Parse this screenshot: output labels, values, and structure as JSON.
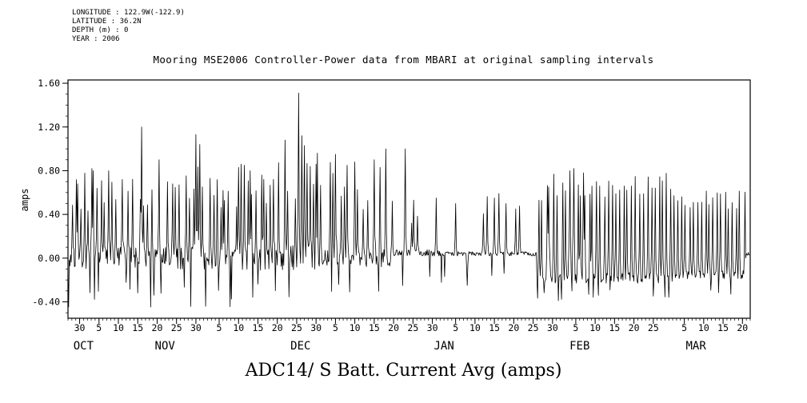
{
  "meta_block": {
    "lines": [
      "LONGITUDE : 122.9W(-122.9)",
      "LATITUDE : 36.2N",
      "DEPTH (m) : 0",
      "YEAR : 2006"
    ]
  },
  "titles": {
    "top": "Mooring MSE2006 Controller-Power data from MBARI at original sampling intervals",
    "bottom": "ADC14/ S Batt. Current Avg (amps)"
  },
  "chart_data": {
    "type": "line",
    "title": "Mooring MSE2006 Controller-Power data from MBARI at original sampling intervals",
    "subtitle": "ADC14/ S Batt. Current Avg (amps)",
    "ylabel": "amps",
    "xlabel": "",
    "line_color": "#000000",
    "background": "#ffffff",
    "grid": false,
    "legend": "none",
    "ylim": [
      -0.55,
      1.63
    ],
    "xlim_days": [
      0,
      176
    ],
    "x_axis": {
      "unit": "day",
      "start_date": "2006-09-27",
      "end_date": "2007-03-22"
    },
    "y_ticks": [
      {
        "value": -0.4,
        "label": "-0.40"
      },
      {
        "value": 0.0,
        "label": "0.00"
      },
      {
        "value": 0.4,
        "label": "0.40"
      },
      {
        "value": 0.8,
        "label": "0.80"
      },
      {
        "value": 1.2,
        "label": "1.20"
      },
      {
        "value": 1.6,
        "label": "1.60"
      }
    ],
    "minor_tick_step_amps": 0.1,
    "minor_tick_step_days": 1,
    "x_major_ticks": [
      {
        "day": 3,
        "label": "30"
      },
      {
        "day": 8,
        "label": "5"
      },
      {
        "day": 13,
        "label": "10"
      },
      {
        "day": 18,
        "label": "15"
      },
      {
        "day": 23,
        "label": "20"
      },
      {
        "day": 28,
        "label": "25"
      },
      {
        "day": 33,
        "label": "30"
      },
      {
        "day": 39,
        "label": "5"
      },
      {
        "day": 44,
        "label": "10"
      },
      {
        "day": 49,
        "label": "15"
      },
      {
        "day": 54,
        "label": "20"
      },
      {
        "day": 59,
        "label": "25"
      },
      {
        "day": 64,
        "label": "30"
      },
      {
        "day": 69,
        "label": "5"
      },
      {
        "day": 74,
        "label": "10"
      },
      {
        "day": 79,
        "label": "15"
      },
      {
        "day": 84,
        "label": "20"
      },
      {
        "day": 89,
        "label": "25"
      },
      {
        "day": 94,
        "label": "30"
      },
      {
        "day": 100,
        "label": "5"
      },
      {
        "day": 105,
        "label": "10"
      },
      {
        "day": 110,
        "label": "15"
      },
      {
        "day": 115,
        "label": "20"
      },
      {
        "day": 120,
        "label": "25"
      },
      {
        "day": 125,
        "label": "30"
      },
      {
        "day": 131,
        "label": "5"
      },
      {
        "day": 136,
        "label": "10"
      },
      {
        "day": 141,
        "label": "15"
      },
      {
        "day": 146,
        "label": "20"
      },
      {
        "day": 151,
        "label": "25"
      },
      {
        "day": 159,
        "label": "5"
      },
      {
        "day": 164,
        "label": "10"
      },
      {
        "day": 169,
        "label": "15"
      },
      {
        "day": 174,
        "label": "20"
      }
    ],
    "month_labels": [
      {
        "day": 4,
        "label": "OCT"
      },
      {
        "day": 25,
        "label": "NOV"
      },
      {
        "day": 60,
        "label": "DEC"
      },
      {
        "day": 97,
        "label": "JAN"
      },
      {
        "day": 132,
        "label": "FEB"
      },
      {
        "day": 162,
        "label": "MAR"
      }
    ],
    "description": "Noisy battery-current time series sampled many times per day. Oct-Dec: baseline near 0.0 amps with frequent sharp spikes to 0.4-1.2 amps and dips to about -0.45; maximum spike 1.51 amps in late Nov. Late Dec through mid Jan: quiet flat baseline near +0.05 with a few isolated 0.45-1.0 amp spikes. Late Jan through Mar: regular daily comb of spikes 0.45-0.8 amps above a baseline near -0.2, ending near 0.0 at the right edge.",
    "series_spec": {
      "seed": 20061,
      "samples_per_day": 6,
      "clamp": [
        -0.5,
        1.55
      ],
      "segments": [
        {
          "from": 0,
          "to": 35,
          "base": 0.0,
          "jit": 0.1,
          "p_spike": 0.8,
          "spike": [
            0.4,
            0.85
          ],
          "p_dip": 0.5,
          "dip": [
            -0.45,
            -0.22
          ]
        },
        {
          "from": 35,
          "to": 56,
          "base": -0.02,
          "jit": 0.1,
          "p_spike": 0.8,
          "spike": [
            0.45,
            0.9
          ],
          "p_dip": 0.5,
          "dip": [
            -0.45,
            -0.22
          ]
        },
        {
          "from": 56,
          "to": 66,
          "base": 0.0,
          "jit": 0.12,
          "p_spike": 0.9,
          "spike": [
            0.5,
            1.0
          ],
          "p_dip": 0.5,
          "dip": [
            -0.42,
            -0.22
          ]
        },
        {
          "from": 66,
          "to": 84,
          "base": 0.0,
          "jit": 0.08,
          "p_spike": 0.7,
          "spike": [
            0.4,
            0.9
          ],
          "p_dip": 0.4,
          "dip": [
            -0.4,
            -0.2
          ]
        },
        {
          "from": 84,
          "to": 96,
          "base": 0.05,
          "jit": 0.03,
          "p_spike": 0.25,
          "spike": [
            0.3,
            0.6
          ],
          "p_dip": 0.15,
          "dip": [
            -0.32,
            -0.15
          ]
        },
        {
          "from": 96,
          "to": 121,
          "base": 0.04,
          "jit": 0.02,
          "p_spike": 0.18,
          "spike": [
            0.4,
            0.6
          ],
          "p_dip": 0.1,
          "dip": [
            -0.25,
            -0.12
          ]
        },
        {
          "from": 121,
          "to": 131,
          "base": -0.18,
          "jit": 0.05,
          "p_spike": 1.0,
          "spike": [
            0.5,
            0.8
          ],
          "p_dip": 0.6,
          "dip": [
            -0.4,
            -0.3
          ]
        },
        {
          "from": 131,
          "to": 156,
          "base": -0.18,
          "jit": 0.05,
          "p_spike": 1.0,
          "spike": [
            0.55,
            0.78
          ],
          "p_dip": 0.5,
          "dip": [
            -0.36,
            -0.28
          ]
        },
        {
          "from": 156,
          "to": 175,
          "base": -0.15,
          "jit": 0.04,
          "p_spike": 1.0,
          "spike": [
            0.45,
            0.62
          ],
          "p_dip": 0.4,
          "dip": [
            -0.33,
            -0.25
          ]
        },
        {
          "from": 175,
          "to": 176,
          "base": 0.03,
          "jit": 0.03,
          "p_spike": 0.0,
          "spike": [
            0,
            0
          ],
          "p_dip": 0.0,
          "dip": [
            0,
            0
          ]
        }
      ],
      "notable_events_day_amps": [
        [
          2.5,
          0.68
        ],
        [
          6.5,
          0.8
        ],
        [
          10.5,
          0.8
        ],
        [
          14,
          0.72
        ],
        [
          19,
          1.2
        ],
        [
          23.5,
          0.9
        ],
        [
          27,
          0.68
        ],
        [
          33,
          1.13
        ],
        [
          34,
          1.04
        ],
        [
          40,
          0.62
        ],
        [
          44,
          0.83
        ],
        [
          47,
          0.8
        ],
        [
          50,
          0.76
        ],
        [
          53,
          0.72
        ],
        [
          56,
          1.08
        ],
        [
          59.5,
          1.51
        ],
        [
          60.3,
          1.12
        ],
        [
          61,
          1.03
        ],
        [
          64,
          0.86
        ],
        [
          69,
          0.95
        ],
        [
          72,
          0.85
        ],
        [
          74,
          0.88
        ],
        [
          79,
          0.9
        ],
        [
          82,
          1.0
        ],
        [
          87,
          1.0
        ],
        [
          95,
          0.55
        ],
        [
          100,
          0.5
        ],
        [
          103,
          -0.25
        ],
        [
          110,
          0.55
        ],
        [
          113,
          0.5
        ],
        [
          115.5,
          0.45
        ],
        [
          124,
          0.65
        ],
        [
          129.5,
          0.8
        ],
        [
          130.5,
          0.82
        ],
        [
          133,
          0.78
        ]
      ]
    }
  }
}
